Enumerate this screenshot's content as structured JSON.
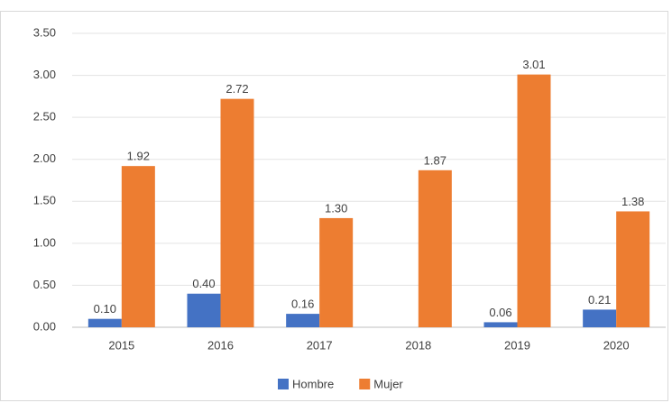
{
  "chart_data": {
    "type": "bar",
    "categories": [
      "2015",
      "2016",
      "2017",
      "2018",
      "2019",
      "2020"
    ],
    "series": [
      {
        "name": "Hombre",
        "color": "#4472c4",
        "values": [
          0.1,
          0.4,
          0.16,
          null,
          0.06,
          0.21
        ],
        "value_labels": [
          "0.10",
          "0.40",
          "0.16",
          null,
          "0.06",
          "0.21"
        ]
      },
      {
        "name": "Mujer",
        "color": "#ed7d31",
        "values": [
          1.92,
          2.72,
          1.3,
          1.87,
          3.01,
          1.38
        ],
        "value_labels": [
          "1.92",
          "2.72",
          "1.30",
          "1.87",
          "3.01",
          "1.38"
        ]
      }
    ],
    "ylim": [
      0,
      3.5
    ],
    "yticks": [
      {
        "value": 0,
        "label": "0.00"
      },
      {
        "value": 0.5,
        "label": "0.50"
      },
      {
        "value": 1,
        "label": "1.00"
      },
      {
        "value": 1.5,
        "label": "1.50"
      },
      {
        "value": 2,
        "label": "2.00"
      },
      {
        "value": 2.5,
        "label": "2.50"
      },
      {
        "value": 3,
        "label": "3.00"
      },
      {
        "value": 3.5,
        "label": "3.50"
      }
    ],
    "grid": true,
    "legend": "bottom"
  }
}
